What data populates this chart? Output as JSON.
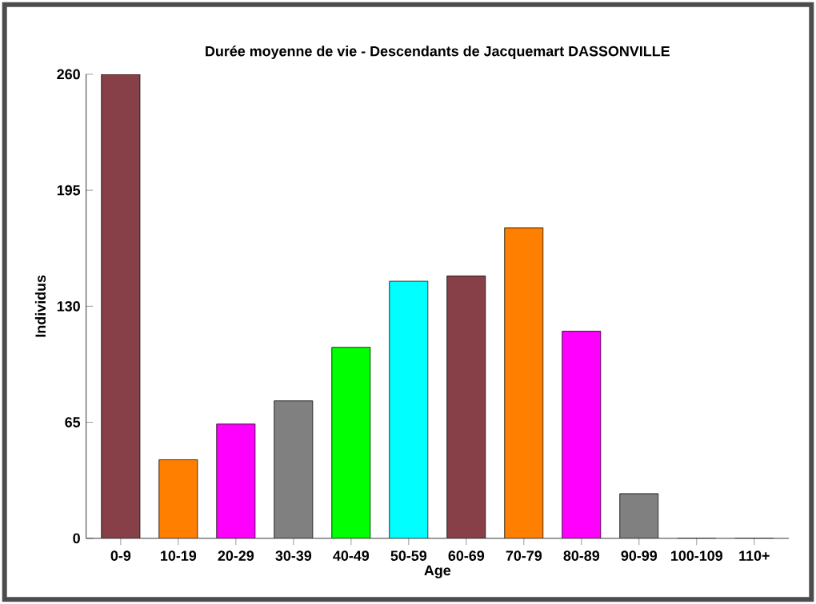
{
  "chart_data": {
    "type": "bar",
    "title": "Durée moyenne de vie - Descendants de Jacquemart DASSONVILLE",
    "xlabel": "Age",
    "ylabel": "Individus",
    "categories": [
      "0-9",
      "10-19",
      "20-29",
      "30-39",
      "40-49",
      "50-59",
      "60-69",
      "70-79",
      "80-89",
      "90-99",
      "100-109",
      "110+"
    ],
    "values": [
      260,
      44,
      64,
      77,
      107,
      144,
      147,
      174,
      116,
      25,
      0,
      0
    ],
    "colors": [
      "#884048",
      "#ff8000",
      "#ff00ff",
      "#808080",
      "#00ff00",
      "#00ffff",
      "#884048",
      "#ff8000",
      "#ff00ff",
      "#808080",
      "#00ff00",
      "#00ffff"
    ],
    "ylim": [
      0,
      260
    ],
    "yticks": [
      0,
      65,
      130,
      195,
      260
    ]
  }
}
